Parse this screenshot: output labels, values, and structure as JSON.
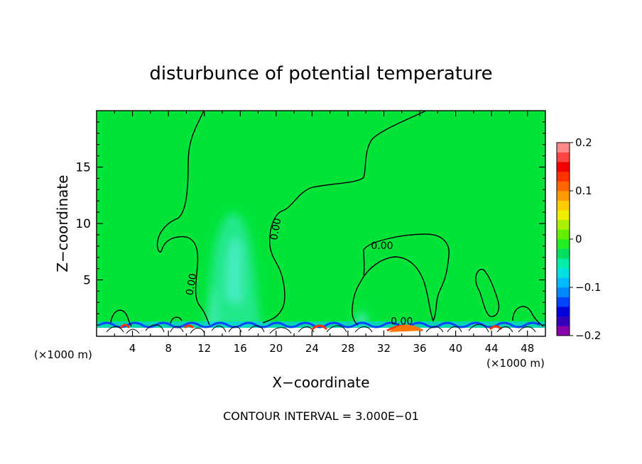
{
  "chart_data": {
    "type": "heatmap",
    "title": "disturbunce of potential temperature",
    "xlabel": "X−coordinate",
    "ylabel": "Z−coordinate",
    "x_unit_left": "(×1000 m)",
    "x_unit_right": "(×1000 m)",
    "footer": "CONTOUR INTERVAL = 3.000E−01",
    "xlim": [
      0,
      50
    ],
    "ylim": [
      0,
      20
    ],
    "x_ticks": [
      4,
      8,
      12,
      16,
      20,
      24,
      28,
      32,
      36,
      40,
      44,
      48
    ],
    "x_tick_labels": [
      "4",
      "8",
      "12",
      "16",
      "20",
      "24",
      "28",
      "32",
      "36",
      "40",
      "44",
      "48"
    ],
    "y_ticks": [
      5,
      10,
      15
    ],
    "y_tick_labels": [
      "5",
      "10",
      "15"
    ],
    "contour_label": "0.00",
    "contour_label_positions": [
      {
        "x": 10.6,
        "y": 4.6
      },
      {
        "x": 20.0,
        "y": 9.5
      },
      {
        "x": 31.8,
        "y": 8.0
      },
      {
        "x": 34.0,
        "y": 1.3
      }
    ],
    "background_value": 0.0,
    "colorbar": {
      "min": -0.2,
      "max": 0.2,
      "tick_values": [
        0.2,
        0.1,
        0,
        -0.1,
        -0.2
      ],
      "tick_labels": [
        "0.2",
        "0.1",
        "0",
        "−0.1",
        "−0.2"
      ],
      "colors": [
        "#8800aa",
        "#3300bb",
        "#0000dd",
        "#0044ff",
        "#0088ff",
        "#00bbff",
        "#00e0e0",
        "#00eeaa",
        "#00e060",
        "#22ee22",
        "#66ee00",
        "#aaee00",
        "#eeee00",
        "#ffcc00",
        "#ff9900",
        "#ff6600",
        "#ff3300",
        "#ee0000",
        "#ff4444",
        "#ff8888"
      ]
    },
    "anomalies": [
      {
        "x_center": 15.5,
        "z_center": 5.0,
        "value": -0.03
      },
      {
        "x_center": 15.5,
        "z_center": 7.5,
        "value": -0.06
      }
    ]
  }
}
